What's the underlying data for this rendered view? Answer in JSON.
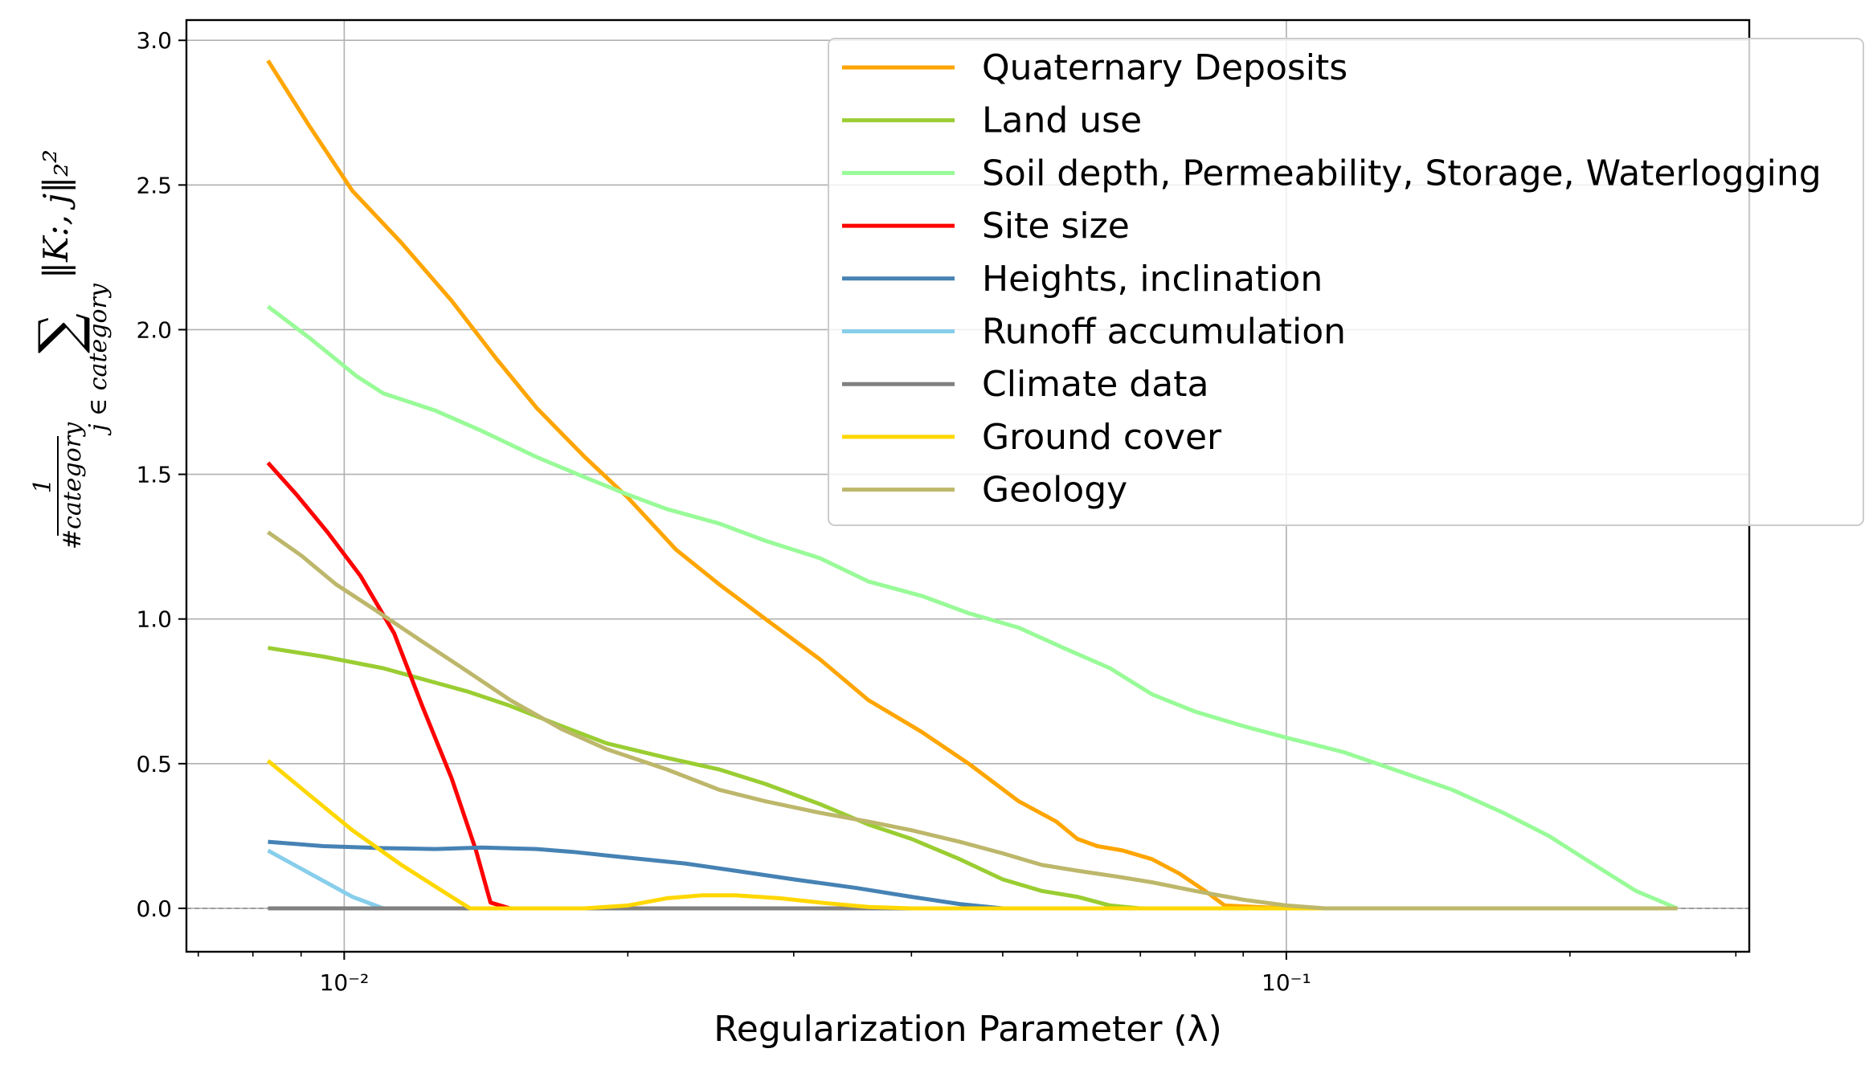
{
  "chart_data": {
    "type": "line",
    "xlabel": "Regularization Parameter (λ)",
    "ylabel": {
      "fraction_numerator": "1",
      "fraction_denominator": "#category",
      "sum_symbol": "∑",
      "sum_subscript": "j ∈ category",
      "summand": "‖K:, j‖₂²"
    },
    "xscale": "log",
    "xlim": [
      0.0068,
      0.31
    ],
    "ylim": [
      -0.15,
      3.07
    ],
    "xticks_major": [
      {
        "value": 0.01,
        "label": "10⁻²"
      },
      {
        "value": 0.1,
        "label": "10⁻¹"
      }
    ],
    "yticks": [
      "0.0",
      "0.5",
      "1.0",
      "1.5",
      "2.0",
      "2.5",
      "3.0"
    ],
    "grid": true,
    "hline_dashed_at": 0,
    "legend_position": "upper right",
    "series": [
      {
        "name": "Quaternary Deposits",
        "color": "#FFA500",
        "points": [
          [
            0.0083,
            2.93
          ],
          [
            0.0092,
            2.7
          ],
          [
            0.0102,
            2.48
          ],
          [
            0.0115,
            2.3
          ],
          [
            0.013,
            2.1
          ],
          [
            0.0145,
            1.9
          ],
          [
            0.016,
            1.73
          ],
          [
            0.018,
            1.56
          ],
          [
            0.02,
            1.42
          ],
          [
            0.0225,
            1.24
          ],
          [
            0.025,
            1.12
          ],
          [
            0.028,
            1.0
          ],
          [
            0.032,
            0.86
          ],
          [
            0.036,
            0.72
          ],
          [
            0.041,
            0.61
          ],
          [
            0.046,
            0.5
          ],
          [
            0.052,
            0.37
          ],
          [
            0.057,
            0.3
          ],
          [
            0.06,
            0.24
          ],
          [
            0.063,
            0.215
          ],
          [
            0.067,
            0.2
          ],
          [
            0.072,
            0.17
          ],
          [
            0.077,
            0.12
          ],
          [
            0.082,
            0.06
          ],
          [
            0.086,
            0.01
          ],
          [
            0.1,
            0.0
          ],
          [
            0.26,
            0.0
          ]
        ]
      },
      {
        "name": "Land use",
        "color": "#9ACD32",
        "points": [
          [
            0.0083,
            0.9
          ],
          [
            0.0095,
            0.87
          ],
          [
            0.011,
            0.83
          ],
          [
            0.0125,
            0.78
          ],
          [
            0.0135,
            0.75
          ],
          [
            0.015,
            0.7
          ],
          [
            0.017,
            0.63
          ],
          [
            0.019,
            0.57
          ],
          [
            0.022,
            0.52
          ],
          [
            0.025,
            0.48
          ],
          [
            0.028,
            0.43
          ],
          [
            0.032,
            0.36
          ],
          [
            0.036,
            0.29
          ],
          [
            0.04,
            0.24
          ],
          [
            0.045,
            0.17
          ],
          [
            0.05,
            0.1
          ],
          [
            0.055,
            0.06
          ],
          [
            0.06,
            0.04
          ],
          [
            0.065,
            0.01
          ],
          [
            0.07,
            0.0
          ],
          [
            0.26,
            0.0
          ]
        ]
      },
      {
        "name": "Soil depth, Permeability, Storage, Waterlogging",
        "color": "#98FB98",
        "points": [
          [
            0.0083,
            2.08
          ],
          [
            0.0092,
            1.97
          ],
          [
            0.0103,
            1.84
          ],
          [
            0.011,
            1.78
          ],
          [
            0.0125,
            1.72
          ],
          [
            0.014,
            1.65
          ],
          [
            0.016,
            1.56
          ],
          [
            0.018,
            1.49
          ],
          [
            0.02,
            1.43
          ],
          [
            0.022,
            1.38
          ],
          [
            0.025,
            1.33
          ],
          [
            0.028,
            1.27
          ],
          [
            0.032,
            1.21
          ],
          [
            0.036,
            1.13
          ],
          [
            0.041,
            1.08
          ],
          [
            0.046,
            1.02
          ],
          [
            0.052,
            0.97
          ],
          [
            0.058,
            0.9
          ],
          [
            0.065,
            0.83
          ],
          [
            0.072,
            0.74
          ],
          [
            0.08,
            0.68
          ],
          [
            0.09,
            0.63
          ],
          [
            0.1,
            0.59
          ],
          [
            0.115,
            0.54
          ],
          [
            0.13,
            0.48
          ],
          [
            0.15,
            0.41
          ],
          [
            0.17,
            0.33
          ],
          [
            0.19,
            0.25
          ],
          [
            0.21,
            0.16
          ],
          [
            0.235,
            0.06
          ],
          [
            0.26,
            0.0
          ]
        ]
      },
      {
        "name": "Site size",
        "color": "#FF0000",
        "points": [
          [
            0.0083,
            1.54
          ],
          [
            0.0089,
            1.43
          ],
          [
            0.0096,
            1.3
          ],
          [
            0.0104,
            1.15
          ],
          [
            0.0113,
            0.95
          ],
          [
            0.0121,
            0.7
          ],
          [
            0.013,
            0.45
          ],
          [
            0.0138,
            0.2
          ],
          [
            0.0143,
            0.02
          ],
          [
            0.015,
            0.0
          ],
          [
            0.26,
            0.0
          ]
        ]
      },
      {
        "name": "Heights, inclination",
        "color": "#4682B4",
        "points": [
          [
            0.0083,
            0.23
          ],
          [
            0.0095,
            0.215
          ],
          [
            0.011,
            0.208
          ],
          [
            0.0125,
            0.205
          ],
          [
            0.014,
            0.21
          ],
          [
            0.016,
            0.205
          ],
          [
            0.0175,
            0.195
          ],
          [
            0.02,
            0.175
          ],
          [
            0.023,
            0.155
          ],
          [
            0.026,
            0.13
          ],
          [
            0.03,
            0.1
          ],
          [
            0.035,
            0.07
          ],
          [
            0.04,
            0.04
          ],
          [
            0.045,
            0.015
          ],
          [
            0.05,
            0.0
          ],
          [
            0.26,
            0.0
          ]
        ]
      },
      {
        "name": "Runoff accumulation",
        "color": "#87CEEB",
        "points": [
          [
            0.0083,
            0.2
          ],
          [
            0.0092,
            0.12
          ],
          [
            0.0102,
            0.04
          ],
          [
            0.011,
            0.0
          ],
          [
            0.26,
            0.0
          ]
        ]
      },
      {
        "name": "Climate data",
        "color": "#808080",
        "points": [
          [
            0.0083,
            0.0
          ],
          [
            0.26,
            0.0
          ]
        ]
      },
      {
        "name": "Ground cover",
        "color": "#FFD700",
        "points": [
          [
            0.0083,
            0.51
          ],
          [
            0.0092,
            0.39
          ],
          [
            0.0102,
            0.27
          ],
          [
            0.0115,
            0.15
          ],
          [
            0.013,
            0.04
          ],
          [
            0.0136,
            0.0
          ],
          [
            0.018,
            0.0
          ],
          [
            0.02,
            0.01
          ],
          [
            0.022,
            0.035
          ],
          [
            0.024,
            0.045
          ],
          [
            0.026,
            0.045
          ],
          [
            0.029,
            0.035
          ],
          [
            0.032,
            0.02
          ],
          [
            0.036,
            0.005
          ],
          [
            0.04,
            0.0
          ],
          [
            0.26,
            0.0
          ]
        ]
      },
      {
        "name": "Geology",
        "color": "#BDB76B",
        "points": [
          [
            0.0083,
            1.3
          ],
          [
            0.009,
            1.22
          ],
          [
            0.0098,
            1.12
          ],
          [
            0.0108,
            1.03
          ],
          [
            0.012,
            0.93
          ],
          [
            0.0135,
            0.82
          ],
          [
            0.015,
            0.72
          ],
          [
            0.017,
            0.62
          ],
          [
            0.019,
            0.55
          ],
          [
            0.022,
            0.48
          ],
          [
            0.025,
            0.41
          ],
          [
            0.028,
            0.37
          ],
          [
            0.032,
            0.33
          ],
          [
            0.036,
            0.3
          ],
          [
            0.04,
            0.27
          ],
          [
            0.045,
            0.23
          ],
          [
            0.05,
            0.19
          ],
          [
            0.055,
            0.15
          ],
          [
            0.06,
            0.13
          ],
          [
            0.066,
            0.11
          ],
          [
            0.072,
            0.09
          ],
          [
            0.08,
            0.06
          ],
          [
            0.09,
            0.03
          ],
          [
            0.1,
            0.01
          ],
          [
            0.11,
            0.0
          ],
          [
            0.26,
            0.0
          ]
        ]
      }
    ]
  }
}
